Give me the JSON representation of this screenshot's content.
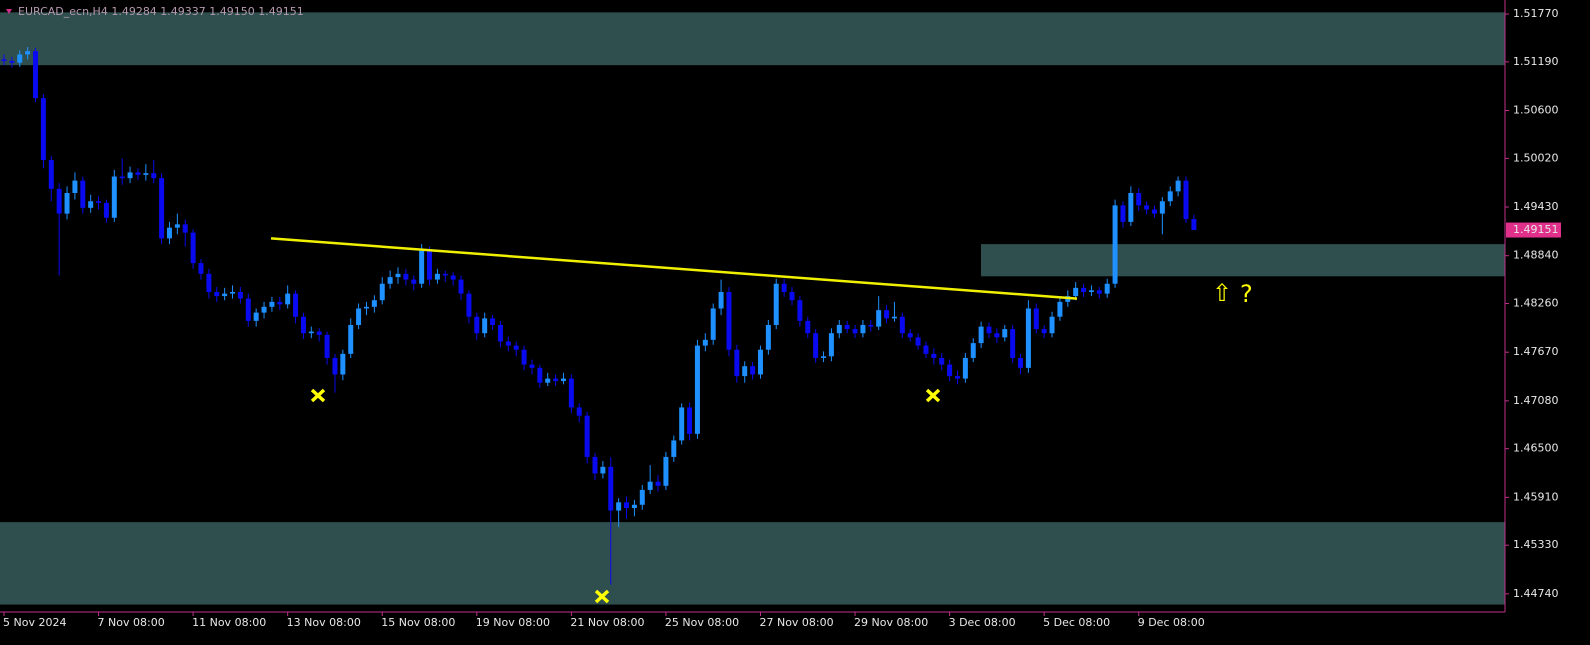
{
  "chart_data": {
    "type": "candlestick",
    "header": "EURCAD_ecn,H4  1.49284 1.49337 1.49150 1.49151",
    "annotations": [
      "⇧",
      "?"
    ],
    "price_label": 1.49151,
    "bull_color": "#1e90ff",
    "bear_color": "#0a0af0",
    "zone_color": "#2f4f4f",
    "trendline_color": "#f0f000",
    "zones": [
      {
        "top": 1.5179,
        "bottom": 1.5115
      },
      {
        "top": 1.4898,
        "bottom": 1.4859
      },
      {
        "top": 1.4561,
        "bottom": 1.4461
      }
    ],
    "trendline": {
      "start": 1.4905,
      "end": 1.4832
    },
    "ylim": [
      1.4452,
      1.5194
    ],
    "yticks": [
      {
        "value": 1.5177,
        "label": "1.51770"
      },
      {
        "value": 1.5119,
        "label": "1.51190"
      },
      {
        "value": 1.506,
        "label": "1.50600"
      },
      {
        "value": 1.5002,
        "label": "1.50020"
      },
      {
        "value": 1.4943,
        "label": "1.49430"
      },
      {
        "value": 1.4884,
        "label": "1.48840"
      },
      {
        "value": 1.4826,
        "label": "1.48260"
      },
      {
        "value": 1.4767,
        "label": "1.47670"
      },
      {
        "value": 1.4708,
        "label": "1.47080"
      },
      {
        "value": 1.465,
        "label": "1.46500"
      },
      {
        "value": 1.4591,
        "label": "1.45910"
      },
      {
        "value": 1.4533,
        "label": "1.45330"
      },
      {
        "value": 1.4474,
        "label": "1.44740"
      }
    ],
    "categories": [
      "5 Nov 2024",
      null,
      null,
      null,
      null,
      null,
      null,
      null,
      null,
      null,
      null,
      null,
      "7 Nov 08:00",
      null,
      null,
      null,
      null,
      null,
      null,
      null,
      null,
      null,
      null,
      null,
      "11 Nov 08:00",
      null,
      null,
      null,
      null,
      null,
      null,
      null,
      null,
      null,
      null,
      null,
      "13 Nov 08:00",
      null,
      null,
      null,
      null,
      null,
      null,
      null,
      null,
      null,
      null,
      null,
      "15 Nov 08:00",
      null,
      null,
      null,
      null,
      null,
      null,
      null,
      null,
      null,
      null,
      null,
      "19 Nov 08:00",
      null,
      null,
      null,
      null,
      null,
      null,
      null,
      null,
      null,
      null,
      null,
      "21 Nov 08:00",
      null,
      null,
      null,
      null,
      null,
      null,
      null,
      null,
      null,
      null,
      null,
      "25 Nov 08:00",
      null,
      null,
      null,
      null,
      null,
      null,
      null,
      null,
      null,
      null,
      null,
      "27 Nov 08:00",
      null,
      null,
      null,
      null,
      null,
      null,
      null,
      null,
      null,
      null,
      null,
      "29 Nov 08:00",
      null,
      null,
      null,
      null,
      null,
      null,
      null,
      null,
      null,
      null,
      null,
      "3 Dec 08:00",
      null,
      null,
      null,
      null,
      null,
      null,
      null,
      null,
      null,
      null,
      null,
      "5 Dec 08:00",
      null,
      null,
      null,
      null,
      null,
      null,
      null,
      null,
      null,
      null,
      null,
      "9 Dec 08:00",
      null,
      null,
      null,
      null,
      null,
      null,
      null
    ],
    "ohlc": [
      [
        1.5122,
        1.5128,
        1.5115,
        1.512
      ],
      [
        1.512,
        1.5125,
        1.5112,
        1.5118
      ],
      [
        1.5118,
        1.5133,
        1.5113,
        1.5128
      ],
      [
        1.5128,
        1.5137,
        1.5122,
        1.5132
      ],
      [
        1.5132,
        1.5136,
        1.507,
        1.5075
      ],
      [
        1.5075,
        1.508,
        1.499,
        1.5
      ],
      [
        1.5,
        1.5005,
        1.495,
        1.4965
      ],
      [
        1.4965,
        1.4972,
        1.486,
        1.4935
      ],
      [
        1.4935,
        1.4968,
        1.4928,
        1.496
      ],
      [
        1.496,
        1.4985,
        1.4952,
        1.4975
      ],
      [
        1.4975,
        1.498,
        1.4935,
        1.4942
      ],
      [
        1.4942,
        1.4958,
        1.4936,
        1.495
      ],
      [
        1.495,
        1.4956,
        1.494,
        1.4948
      ],
      [
        1.4948,
        1.4952,
        1.4924,
        1.493
      ],
      [
        1.493,
        1.4988,
        1.4925,
        1.498
      ],
      [
        1.498,
        1.5002,
        1.497,
        1.4978
      ],
      [
        1.4978,
        1.4992,
        1.4972,
        1.4985
      ],
      [
        1.4985,
        1.499,
        1.4976,
        1.4982
      ],
      [
        1.4982,
        1.4995,
        1.4975,
        1.4984
      ],
      [
        1.4984,
        1.5,
        1.4972,
        1.4978
      ],
      [
        1.4978,
        1.4984,
        1.4898,
        1.4905
      ],
      [
        1.4905,
        1.4925,
        1.4898,
        1.4918
      ],
      [
        1.4918,
        1.4935,
        1.491,
        1.4922
      ],
      [
        1.4922,
        1.4928,
        1.4895,
        1.4912
      ],
      [
        1.4912,
        1.4916,
        1.4868,
        1.4875
      ],
      [
        1.4875,
        1.488,
        1.4855,
        1.4862
      ],
      [
        1.4862,
        1.4868,
        1.4832,
        1.484
      ],
      [
        1.484,
        1.4846,
        1.4828,
        1.4835
      ],
      [
        1.4835,
        1.4845,
        1.483,
        1.4838
      ],
      [
        1.4838,
        1.4848,
        1.4832,
        1.484
      ],
      [
        1.484,
        1.4846,
        1.4826,
        1.4832
      ],
      [
        1.4832,
        1.4838,
        1.4798,
        1.4805
      ],
      [
        1.4805,
        1.482,
        1.4798,
        1.4815
      ],
      [
        1.4815,
        1.4828,
        1.4808,
        1.4822
      ],
      [
        1.4822,
        1.4834,
        1.4816,
        1.4828
      ],
      [
        1.4828,
        1.4834,
        1.4818,
        1.4825
      ],
      [
        1.4825,
        1.4848,
        1.482,
        1.4838
      ],
      [
        1.4838,
        1.4842,
        1.4802,
        1.481
      ],
      [
        1.481,
        1.4815,
        1.4783,
        1.479
      ],
      [
        1.479,
        1.4798,
        1.4784,
        1.4792
      ],
      [
        1.4792,
        1.4796,
        1.478,
        1.4788
      ],
      [
        1.4788,
        1.4792,
        1.4752,
        1.476
      ],
      [
        1.476,
        1.4765,
        1.4718,
        1.474
      ],
      [
        1.474,
        1.477,
        1.4733,
        1.4765
      ],
      [
        1.4765,
        1.4808,
        1.476,
        1.48
      ],
      [
        1.48,
        1.4826,
        1.4795,
        1.482
      ],
      [
        1.482,
        1.4828,
        1.4812,
        1.4822
      ],
      [
        1.4822,
        1.4836,
        1.4815,
        1.483
      ],
      [
        1.483,
        1.4858,
        1.4825,
        1.485
      ],
      [
        1.485,
        1.4866,
        1.4844,
        1.4858
      ],
      [
        1.4858,
        1.487,
        1.485,
        1.4862
      ],
      [
        1.4862,
        1.4868,
        1.4848,
        1.4855
      ],
      [
        1.4855,
        1.486,
        1.4842,
        1.485
      ],
      [
        1.485,
        1.4898,
        1.4845,
        1.489
      ],
      [
        1.489,
        1.4895,
        1.4848,
        1.4855
      ],
      [
        1.4855,
        1.4868,
        1.485,
        1.4862
      ],
      [
        1.4862,
        1.4866,
        1.4852,
        1.486
      ],
      [
        1.486,
        1.4864,
        1.4848,
        1.4855
      ],
      [
        1.4855,
        1.486,
        1.483,
        1.4838
      ],
      [
        1.4838,
        1.4842,
        1.4802,
        1.481
      ],
      [
        1.481,
        1.4815,
        1.4782,
        1.479
      ],
      [
        1.479,
        1.4815,
        1.4785,
        1.4808
      ],
      [
        1.4808,
        1.4812,
        1.4794,
        1.48
      ],
      [
        1.48,
        1.4805,
        1.4773,
        1.478
      ],
      [
        1.478,
        1.4786,
        1.4768,
        1.4775
      ],
      [
        1.4775,
        1.478,
        1.4762,
        1.477
      ],
      [
        1.477,
        1.4775,
        1.4745,
        1.4752
      ],
      [
        1.4752,
        1.4758,
        1.474,
        1.4748
      ],
      [
        1.4748,
        1.4752,
        1.4724,
        1.473
      ],
      [
        1.473,
        1.4742,
        1.4726,
        1.4735
      ],
      [
        1.4735,
        1.474,
        1.4726,
        1.4732
      ],
      [
        1.4732,
        1.4742,
        1.4728,
        1.4735
      ],
      [
        1.4735,
        1.474,
        1.4693,
        1.47
      ],
      [
        1.47,
        1.4705,
        1.4682,
        1.469
      ],
      [
        1.469,
        1.4695,
        1.4632,
        1.464
      ],
      [
        1.464,
        1.4645,
        1.4612,
        1.462
      ],
      [
        1.462,
        1.4635,
        1.4614,
        1.4628
      ],
      [
        1.4628,
        1.464,
        1.4485,
        1.4575
      ],
      [
        1.4575,
        1.459,
        1.4555,
        1.4585
      ],
      [
        1.4585,
        1.4592,
        1.4565,
        1.4578
      ],
      [
        1.4578,
        1.4588,
        1.4568,
        1.4582
      ],
      [
        1.4582,
        1.4606,
        1.4576,
        1.46
      ],
      [
        1.46,
        1.463,
        1.4595,
        1.461
      ],
      [
        1.461,
        1.4618,
        1.4598,
        1.4605
      ],
      [
        1.4605,
        1.4646,
        1.46,
        1.464
      ],
      [
        1.464,
        1.4666,
        1.4634,
        1.466
      ],
      [
        1.466,
        1.4705,
        1.4655,
        1.47
      ],
      [
        1.47,
        1.4706,
        1.466,
        1.4668
      ],
      [
        1.4668,
        1.4782,
        1.4662,
        1.4775
      ],
      [
        1.4775,
        1.479,
        1.4768,
        1.4782
      ],
      [
        1.4782,
        1.4826,
        1.4776,
        1.482
      ],
      [
        1.482,
        1.4855,
        1.4812,
        1.484
      ],
      [
        1.484,
        1.4846,
        1.4762,
        1.477
      ],
      [
        1.477,
        1.4776,
        1.473,
        1.4738
      ],
      [
        1.4738,
        1.4756,
        1.473,
        1.475
      ],
      [
        1.475,
        1.4755,
        1.4734,
        1.474
      ],
      [
        1.474,
        1.4775,
        1.4735,
        1.477
      ],
      [
        1.477,
        1.4806,
        1.4764,
        1.48
      ],
      [
        1.48,
        1.4856,
        1.4795,
        1.485
      ],
      [
        1.485,
        1.4856,
        1.4834,
        1.484
      ],
      [
        1.484,
        1.4846,
        1.4824,
        1.483
      ],
      [
        1.483,
        1.4835,
        1.4798,
        1.4805
      ],
      [
        1.4805,
        1.481,
        1.4784,
        1.479
      ],
      [
        1.479,
        1.4795,
        1.4754,
        1.476
      ],
      [
        1.476,
        1.4768,
        1.4755,
        1.4762
      ],
      [
        1.4762,
        1.4796,
        1.4756,
        1.479
      ],
      [
        1.479,
        1.4806,
        1.4784,
        1.48
      ],
      [
        1.48,
        1.4805,
        1.479,
        1.4795
      ],
      [
        1.4795,
        1.48,
        1.4784,
        1.479
      ],
      [
        1.479,
        1.4806,
        1.4785,
        1.48
      ],
      [
        1.48,
        1.4806,
        1.4792,
        1.4798
      ],
      [
        1.4798,
        1.4835,
        1.4794,
        1.4818
      ],
      [
        1.4818,
        1.4824,
        1.4802,
        1.4808
      ],
      [
        1.4808,
        1.4828,
        1.4804,
        1.481
      ],
      [
        1.481,
        1.4815,
        1.4784,
        1.479
      ],
      [
        1.479,
        1.4795,
        1.478,
        1.4785
      ],
      [
        1.4785,
        1.479,
        1.477,
        1.4775
      ],
      [
        1.4775,
        1.478,
        1.476,
        1.4765
      ],
      [
        1.4765,
        1.4772,
        1.4752,
        1.476
      ],
      [
        1.476,
        1.4766,
        1.4745,
        1.4752
      ],
      [
        1.4752,
        1.4758,
        1.4732,
        1.4738
      ],
      [
        1.4738,
        1.4745,
        1.4728,
        1.4735
      ],
      [
        1.4735,
        1.4766,
        1.473,
        1.476
      ],
      [
        1.476,
        1.4784,
        1.4755,
        1.4778
      ],
      [
        1.4778,
        1.4804,
        1.4772,
        1.4798
      ],
      [
        1.4798,
        1.4803,
        1.4784,
        1.479
      ],
      [
        1.479,
        1.4796,
        1.4778,
        1.4785
      ],
      [
        1.4785,
        1.48,
        1.478,
        1.4795
      ],
      [
        1.4795,
        1.48,
        1.4754,
        1.476
      ],
      [
        1.476,
        1.4765,
        1.474,
        1.4748
      ],
      [
        1.4748,
        1.483,
        1.4742,
        1.482
      ],
      [
        1.482,
        1.4826,
        1.479,
        1.4795
      ],
      [
        1.4795,
        1.48,
        1.4784,
        1.479
      ],
      [
        1.479,
        1.4816,
        1.4785,
        1.481
      ],
      [
        1.481,
        1.4834,
        1.4805,
        1.4828
      ],
      [
        1.4828,
        1.4842,
        1.4822,
        1.4835
      ],
      [
        1.4835,
        1.4852,
        1.483,
        1.4845
      ],
      [
        1.4845,
        1.485,
        1.4834,
        1.484
      ],
      [
        1.484,
        1.4848,
        1.4835,
        1.4842
      ],
      [
        1.4842,
        1.4846,
        1.4832,
        1.4838
      ],
      [
        1.4838,
        1.4856,
        1.4833,
        1.485
      ],
      [
        1.485,
        1.4952,
        1.4845,
        1.4945
      ],
      [
        1.4945,
        1.495,
        1.4918,
        1.4925
      ],
      [
        1.4925,
        1.4968,
        1.492,
        1.496
      ],
      [
        1.496,
        1.4966,
        1.4938,
        1.4945
      ],
      [
        1.4945,
        1.495,
        1.4934,
        1.494
      ],
      [
        1.494,
        1.4945,
        1.493,
        1.4935
      ],
      [
        1.4935,
        1.4955,
        1.491,
        1.495
      ],
      [
        1.495,
        1.4968,
        1.4944,
        1.4962
      ],
      [
        1.4962,
        1.498,
        1.4956,
        1.4975
      ],
      [
        1.4975,
        1.498,
        1.4924,
        1.49284
      ],
      [
        1.49284,
        1.49337,
        1.4915,
        1.49151
      ]
    ]
  }
}
